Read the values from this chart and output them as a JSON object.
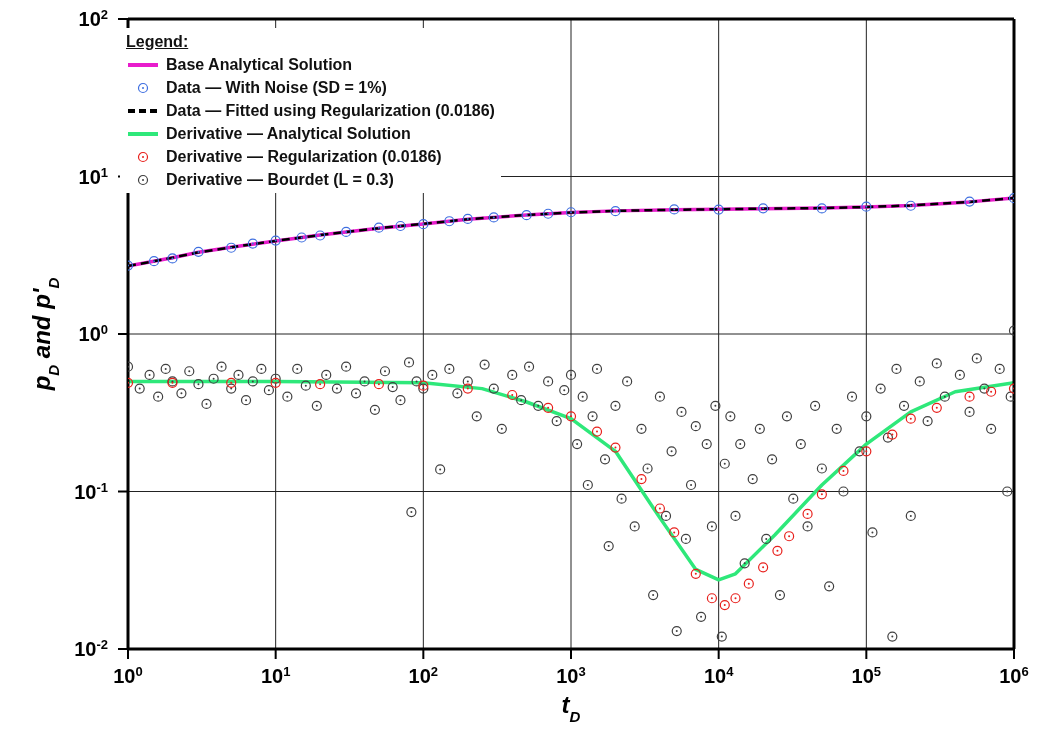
{
  "chart_data": {
    "type": "line",
    "xlabel": "t$_{D}$",
    "ylabel": "p$_{D}$ and p'$_{D}$",
    "legend_title": "Legend:",
    "legend": "top left",
    "log": "xy",
    "grid": true,
    "xlim": [
      1,
      1000000
    ],
    "ylim": [
      0.01,
      100
    ],
    "xticks": [
      {
        "value": 1,
        "label": "10$^{0}$"
      },
      {
        "value": 10,
        "label": "10$^{1}$"
      },
      {
        "value": 100,
        "label": "10$^{2}$"
      },
      {
        "value": 1000,
        "label": "10$^{3}$"
      },
      {
        "value": 10000,
        "label": "10$^{4}$"
      },
      {
        "value": 100000,
        "label": "10$^{5}$"
      },
      {
        "value": 1000000,
        "label": "10$^{6}$"
      }
    ],
    "yticks": [
      {
        "value": 0.01,
        "label": "10$^{-2}$"
      },
      {
        "value": 0.1,
        "label": "10$^{-1}$"
      },
      {
        "value": 1,
        "label": "10$^{0}$"
      },
      {
        "value": 10,
        "label": "10$^{1}$"
      },
      {
        "value": 100,
        "label": "10$^{2}$"
      }
    ],
    "series": [
      {
        "name": "Base Analytical Solution",
        "line_style": "solid",
        "color": "#e81ccc",
        "x": [
          1,
          2,
          3,
          5,
          10,
          20,
          50,
          100,
          200,
          500,
          1000,
          2000,
          5000,
          10000,
          20000,
          50000,
          100000,
          200000,
          500000,
          1000000
        ],
        "values": [
          2.7,
          3.05,
          3.3,
          3.55,
          3.9,
          4.25,
          4.7,
          5.0,
          5.35,
          5.7,
          5.9,
          6.05,
          6.15,
          6.2,
          6.25,
          6.3,
          6.4,
          6.55,
          6.9,
          7.3
        ]
      },
      {
        "name": "Data — With Noise (SD = 1%)",
        "type": "scatter",
        "marker": "circle",
        "color": "#3f6fe0",
        "x": [
          1,
          1.5,
          2,
          3,
          5,
          7,
          10,
          15,
          20,
          30,
          50,
          70,
          100,
          150,
          200,
          300,
          500,
          700,
          1000,
          2000,
          5000,
          10000,
          20000,
          50000,
          100000,
          200000,
          500000,
          1000000
        ],
        "values": [
          2.72,
          2.9,
          3.02,
          3.32,
          3.53,
          3.75,
          3.92,
          4.1,
          4.22,
          4.45,
          4.73,
          4.85,
          4.98,
          5.2,
          5.38,
          5.5,
          5.68,
          5.8,
          5.93,
          6.02,
          6.18,
          6.17,
          6.28,
          6.27,
          6.43,
          6.52,
          6.93,
          7.28
        ]
      },
      {
        "name": "Data — Fitted using Regularization (0.0186)",
        "line_style": "dashed",
        "color": "#000000",
        "x": [
          1,
          2,
          3,
          5,
          10,
          20,
          50,
          100,
          200,
          500,
          1000,
          2000,
          5000,
          10000,
          20000,
          50000,
          100000,
          200000,
          500000,
          1000000
        ],
        "values": [
          2.7,
          3.05,
          3.3,
          3.55,
          3.9,
          4.25,
          4.7,
          5.0,
          5.35,
          5.7,
          5.9,
          6.05,
          6.15,
          6.2,
          6.25,
          6.3,
          6.4,
          6.55,
          6.9,
          7.3
        ]
      },
      {
        "name": "Derivative — Analytical Solution",
        "line_style": "solid",
        "color": "#2ee87a",
        "x": [
          1,
          10,
          100,
          250,
          500,
          1000,
          2000,
          4000,
          7000,
          10000,
          13000,
          24000,
          50000,
          100000,
          200000,
          400000,
          1000000
        ],
        "values": [
          0.5,
          0.5,
          0.49,
          0.45,
          0.37,
          0.29,
          0.18,
          0.068,
          0.032,
          0.0275,
          0.03,
          0.053,
          0.11,
          0.2,
          0.32,
          0.43,
          0.49
        ]
      },
      {
        "name": "Derivative — Regularization (0.0186)",
        "type": "scatter",
        "marker": "circle",
        "color": "#e8201c",
        "x": [
          1,
          2,
          5,
          10,
          20,
          50,
          100,
          200,
          400,
          700,
          1000,
          1500,
          2000,
          3000,
          4000,
          5000,
          7000,
          9000,
          11000,
          13000,
          16000,
          20000,
          25000,
          30000,
          40000,
          50000,
          70000,
          100000,
          150000,
          200000,
          300000,
          500000,
          700000,
          1000000
        ],
        "values": [
          0.49,
          0.49,
          0.49,
          0.49,
          0.48,
          0.48,
          0.47,
          0.45,
          0.41,
          0.34,
          0.3,
          0.24,
          0.19,
          0.12,
          0.078,
          0.055,
          0.03,
          0.021,
          0.019,
          0.021,
          0.026,
          0.033,
          0.042,
          0.052,
          0.072,
          0.096,
          0.135,
          0.18,
          0.23,
          0.29,
          0.34,
          0.4,
          0.43,
          0.45
        ]
      },
      {
        "name": "Derivative — Bourdet (L = 0.3)",
        "type": "scatter",
        "marker": "circle",
        "color": "#404040",
        "x": [
          1,
          1.2,
          1.4,
          1.6,
          1.8,
          2,
          2.3,
          2.6,
          3,
          3.4,
          3.8,
          4.3,
          5,
          5.6,
          6.3,
          7,
          8,
          9,
          10,
          12,
          14,
          16,
          19,
          22,
          26,
          30,
          35,
          40,
          47,
          55,
          62,
          70,
          80,
          83,
          90,
          100,
          115,
          130,
          150,
          170,
          200,
          230,
          260,
          300,
          340,
          400,
          460,
          520,
          600,
          700,
          800,
          900,
          1000,
          1100,
          1200,
          1300,
          1400,
          1500,
          1700,
          1800,
          2000,
          2200,
          2400,
          2700,
          3000,
          3300,
          3600,
          4000,
          4400,
          4800,
          5200,
          5600,
          6000,
          6500,
          7000,
          7600,
          8300,
          9000,
          9500,
          10500,
          11000,
          12000,
          13000,
          14000,
          15000,
          17000,
          19000,
          21000,
          23000,
          26000,
          29000,
          32000,
          36000,
          40000,
          45000,
          50000,
          56000,
          63000,
          70000,
          80000,
          90000,
          100000,
          110000,
          125000,
          140000,
          150000,
          160000,
          180000,
          200000,
          230000,
          260000,
          300000,
          340000,
          430000,
          500000,
          560000,
          630000,
          700000,
          800000,
          900000,
          950000,
          1000000
        ],
        "values": [
          0.62,
          0.45,
          0.55,
          0.4,
          0.6,
          0.5,
          0.42,
          0.58,
          0.48,
          0.36,
          0.52,
          0.62,
          0.45,
          0.55,
          0.38,
          0.5,
          0.6,
          0.44,
          0.52,
          0.4,
          0.6,
          0.47,
          0.35,
          0.55,
          0.45,
          0.62,
          0.42,
          0.5,
          0.33,
          0.58,
          0.46,
          0.38,
          0.66,
          0.074,
          0.5,
          0.45,
          0.55,
          0.138,
          0.6,
          0.42,
          0.5,
          0.3,
          0.64,
          0.45,
          0.25,
          0.55,
          0.38,
          0.62,
          0.35,
          0.5,
          0.28,
          0.44,
          0.55,
          0.2,
          0.4,
          0.11,
          0.3,
          0.6,
          0.16,
          0.045,
          0.35,
          0.09,
          0.5,
          0.06,
          0.25,
          0.14,
          0.022,
          0.4,
          0.07,
          0.18,
          0.013,
          0.32,
          0.05,
          0.11,
          0.26,
          0.016,
          0.2,
          0.06,
          0.35,
          0.012,
          0.15,
          0.3,
          0.07,
          0.2,
          0.035,
          0.12,
          0.25,
          0.05,
          0.16,
          0.022,
          0.3,
          0.09,
          0.2,
          0.06,
          0.35,
          0.14,
          0.025,
          0.25,
          0.1,
          0.4,
          0.18,
          0.3,
          0.055,
          0.45,
          0.22,
          0.012,
          0.6,
          0.35,
          0.07,
          0.5,
          0.28,
          0.65,
          0.4,
          0.55,
          0.32,
          0.7,
          0.45,
          0.25,
          0.6,
          0.1,
          0.4,
          1.05
        ]
      }
    ]
  }
}
